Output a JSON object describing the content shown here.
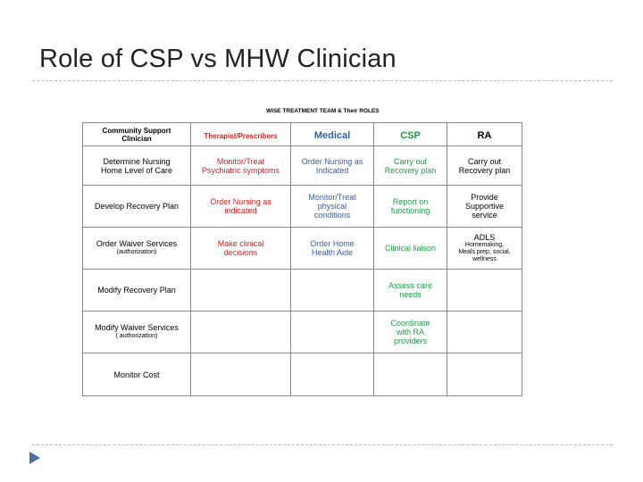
{
  "slide": {
    "title": "Role of CSP vs MHW Clinician"
  },
  "table": {
    "caption": "WISE TREATMENT TEAM & Their ROLES",
    "headers": {
      "csc_line1": "Community Support",
      "csc_line2": "Clinician",
      "therapist": "Therapist/Prescribers",
      "medical": "Medical",
      "csp": "CSP",
      "ra": "RA"
    },
    "rows": [
      {
        "c1": [
          "Determine Nursing",
          "Home Level of Care"
        ],
        "c1_sub": "",
        "c2": [
          "Monitor/Treat",
          "Psychiatric symptoms"
        ],
        "c3": [
          "Order Nursing as",
          "Indicated"
        ],
        "c4": [
          "Carry out",
          "Recovery plan"
        ],
        "c5": [
          "Carry out",
          "Recovery plan"
        ],
        "c5_small": []
      },
      {
        "c1": [
          "Develop Recovery Plan"
        ],
        "c1_sub": "",
        "c2": [
          "Order Nursing as",
          "indicated"
        ],
        "c3": [
          "Monitor/Treat",
          "physical",
          "conditions"
        ],
        "c4": [
          "Report on",
          "functioning"
        ],
        "c5": [
          "Provide",
          "Supportive",
          "service"
        ],
        "c5_small": []
      },
      {
        "c1": [
          "Order Waiver Services"
        ],
        "c1_sub": "(authorization)",
        "c2": [
          "Make clinical",
          "decisions"
        ],
        "c3": [
          "Order Home",
          "Health Aide"
        ],
        "c4": [
          "Clinical liaison"
        ],
        "c5": [
          "ADLS"
        ],
        "c5_small": [
          "Homemaking,",
          "Meals prep, social,",
          "wellness"
        ]
      },
      {
        "c1": [
          "Modify Recovery Plan"
        ],
        "c1_sub": "",
        "c2": [],
        "c3": [],
        "c4": [
          "Assess care",
          "needs"
        ],
        "c5": [],
        "c5_small": []
      },
      {
        "c1": [
          "Modify Waiver Services"
        ],
        "c1_sub": "( authorization)",
        "c2": [],
        "c3": [],
        "c4": [
          "Coordinate",
          "with RA",
          "providers"
        ],
        "c5": [],
        "c5_small": []
      },
      {
        "c1": [
          "Monitor Cost"
        ],
        "c1_sub": "",
        "c2": [],
        "c3": [],
        "c4": [],
        "c5": [],
        "c5_small": []
      }
    ]
  }
}
